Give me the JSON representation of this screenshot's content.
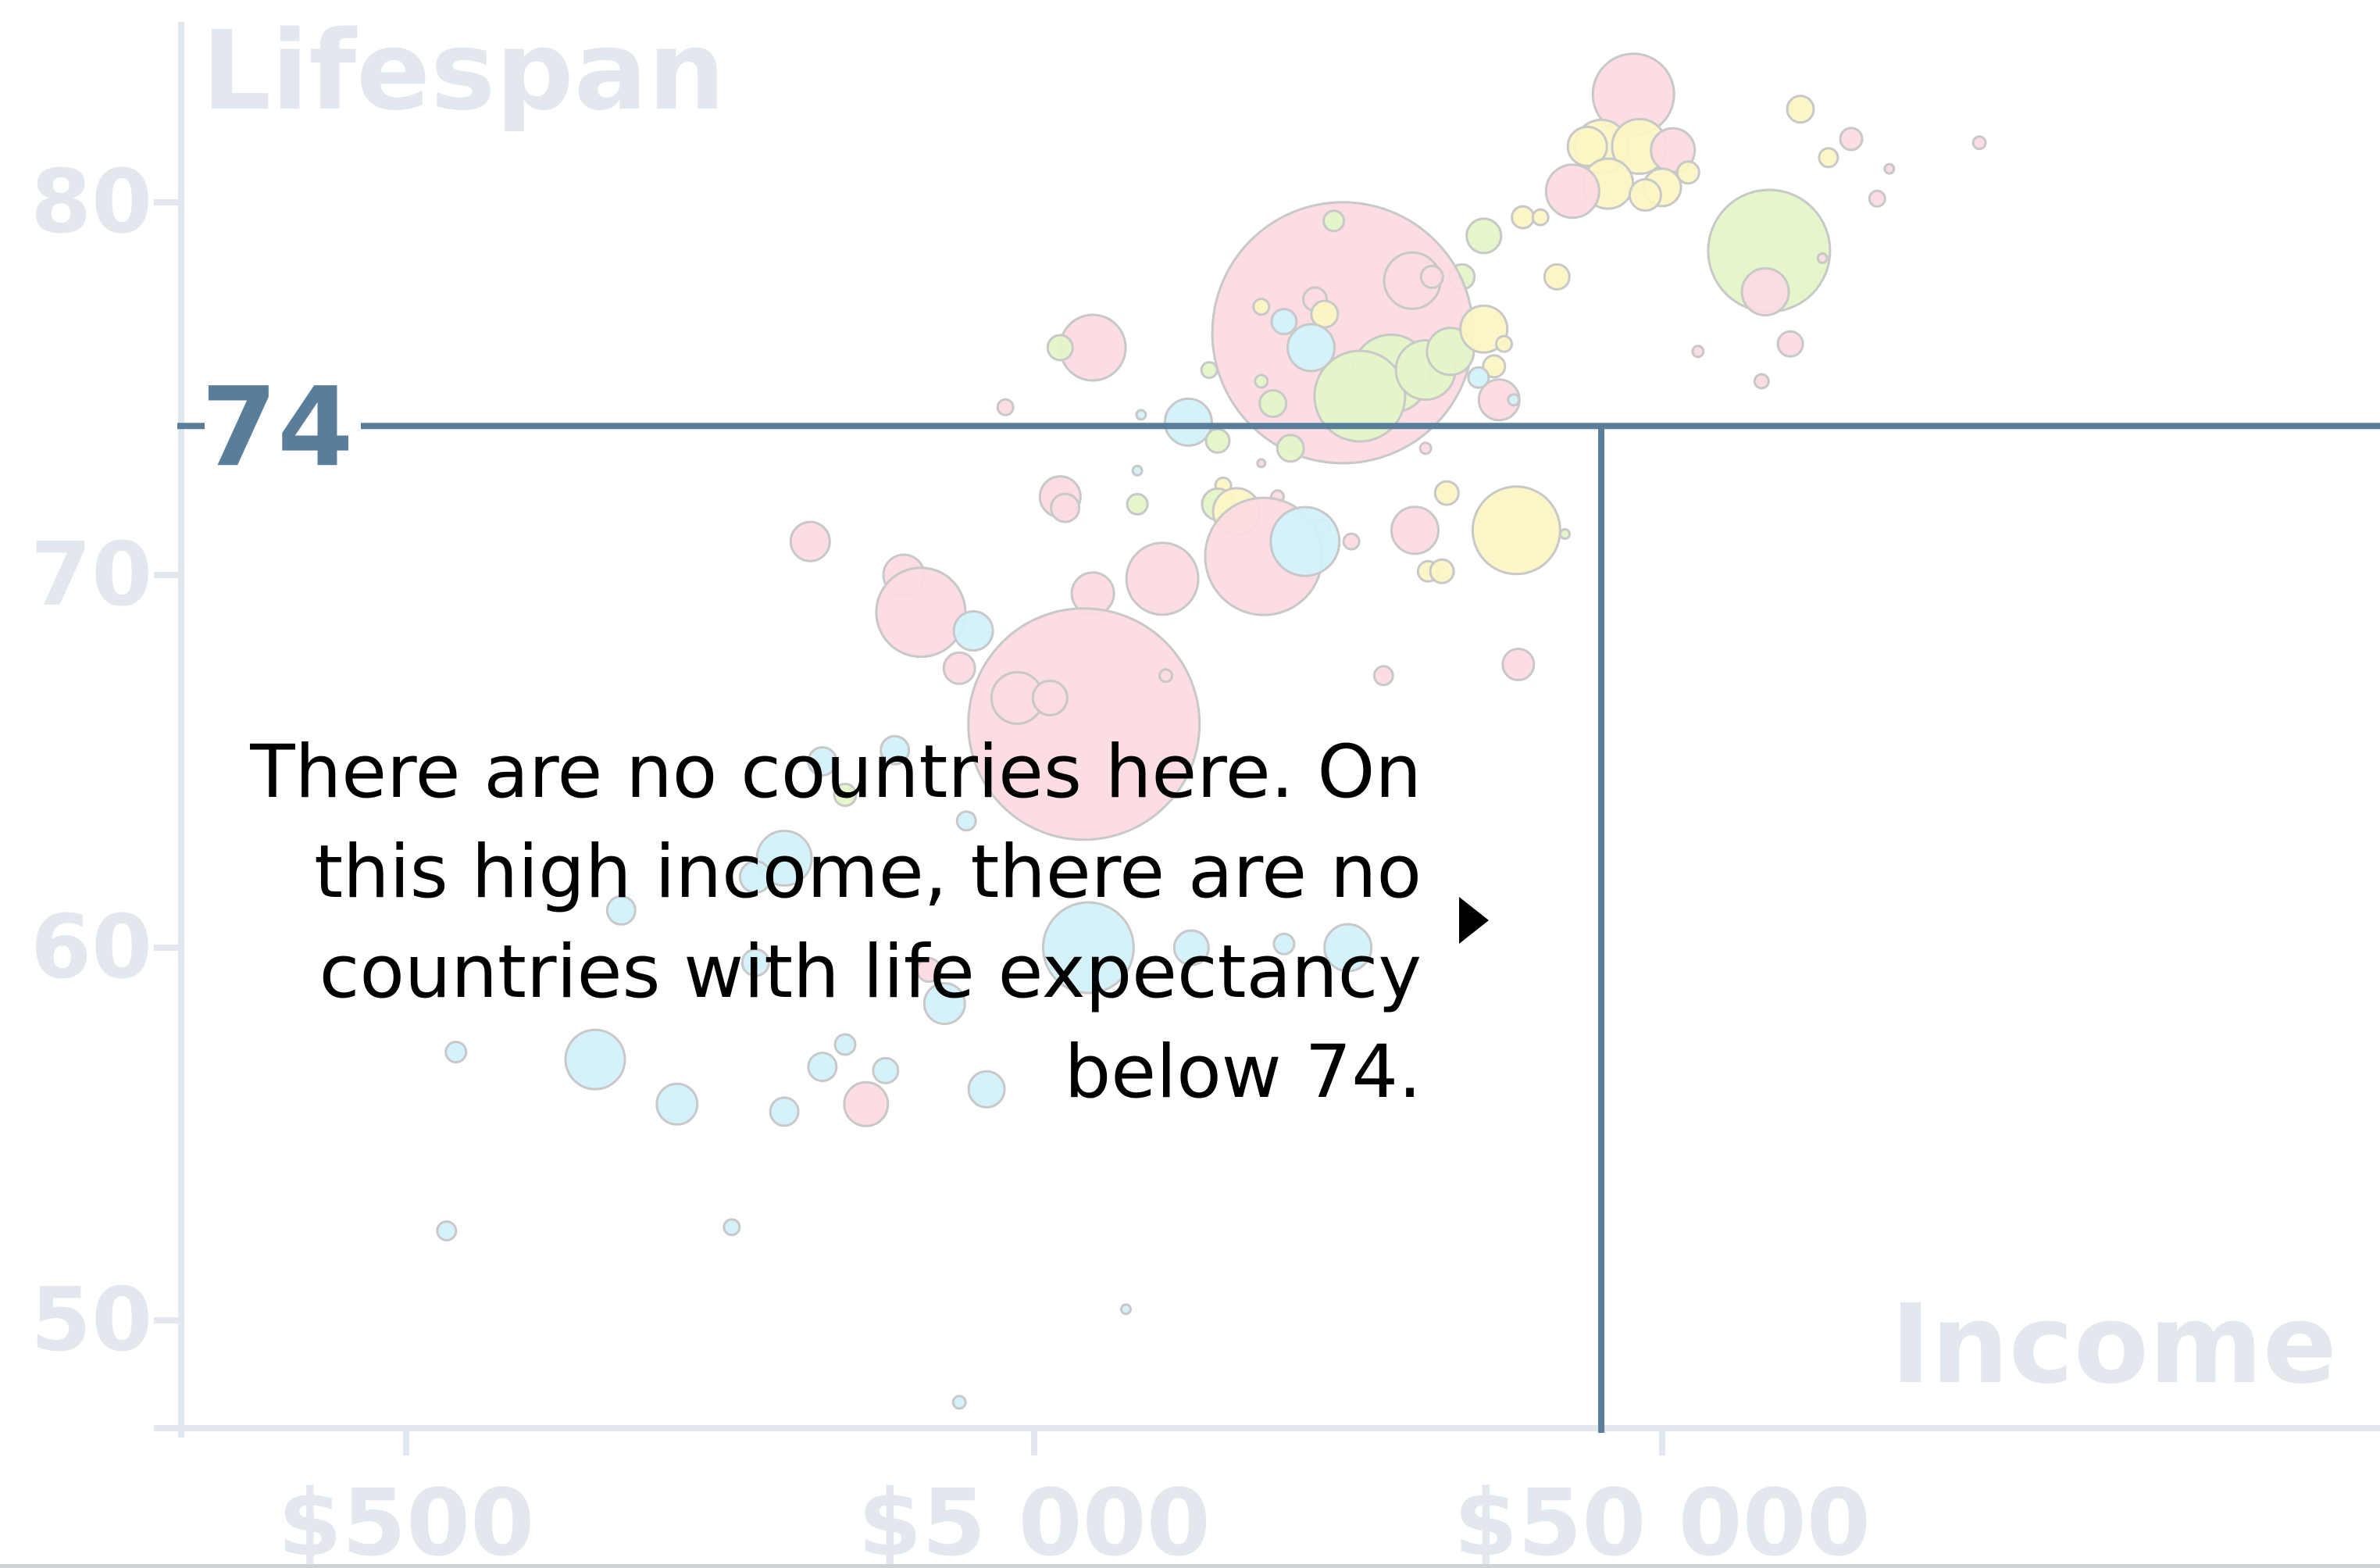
{
  "chart_data": {
    "type": "scatter",
    "subtype": "bubble",
    "ylabel": "Lifespan",
    "xlabel": "Income",
    "x_scale": "log",
    "xlim": [
      200,
      200000
    ],
    "ylim": [
      47,
      84
    ],
    "y_ticks": [
      50,
      60,
      70,
      80
    ],
    "x_ticks": [
      500,
      5000,
      50000
    ],
    "x_tick_labels": [
      "$500",
      "$5 000",
      "$50 000"
    ],
    "y_tick_labels": [
      "80",
      "70",
      "60",
      "50"
    ],
    "threshold": {
      "y": 74,
      "y_label": "74",
      "x": 40000
    },
    "annotation": {
      "lines": [
        "There are no countries here. On",
        "this high income, there are no",
        "countries with life expectancy",
        "below 74."
      ]
    },
    "series_colors": {
      "pink": "#fbdbe1",
      "yellow": "#fbf5c4",
      "green": "#e4f5c8",
      "blue": "#d3f1fb"
    },
    "colors": {
      "axis": "#e3e8ee",
      "highlight_line": "#5a7d99",
      "bubble_stroke": "#c8c8c8"
    },
    "points": [
      {
        "x": 45000,
        "y": 82.9,
        "r": 52,
        "c": "pink"
      },
      {
        "x": 40000,
        "y": 81.5,
        "r": 34,
        "c": "yellow"
      },
      {
        "x": 46000,
        "y": 81.5,
        "r": 35,
        "c": "yellow"
      },
      {
        "x": 52000,
        "y": 81.4,
        "r": 28,
        "c": "pink"
      },
      {
        "x": 38000,
        "y": 81.5,
        "r": 25,
        "c": "yellow"
      },
      {
        "x": 41000,
        "y": 80.5,
        "r": 32,
        "c": "yellow"
      },
      {
        "x": 36000,
        "y": 80.3,
        "r": 34,
        "c": "pink"
      },
      {
        "x": 50000,
        "y": 80.4,
        "r": 24,
        "c": "yellow"
      },
      {
        "x": 47000,
        "y": 80.2,
        "r": 20,
        "c": "yellow"
      },
      {
        "x": 55000,
        "y": 80.8,
        "r": 14,
        "c": "yellow"
      },
      {
        "x": 83000,
        "y": 82.5,
        "r": 17,
        "c": "yellow"
      },
      {
        "x": 100000,
        "y": 81.7,
        "r": 14,
        "c": "pink"
      },
      {
        "x": 92000,
        "y": 81.2,
        "r": 12,
        "c": "yellow"
      },
      {
        "x": 160000,
        "y": 81.6,
        "r": 8,
        "c": "pink"
      },
      {
        "x": 110000,
        "y": 80.1,
        "r": 10,
        "c": "pink"
      },
      {
        "x": 115000,
        "y": 80.9,
        "r": 6,
        "c": "pink"
      },
      {
        "x": 74000,
        "y": 78.7,
        "r": 78,
        "c": "green"
      },
      {
        "x": 73000,
        "y": 77.6,
        "r": 30,
        "c": "pink"
      },
      {
        "x": 90000,
        "y": 78.5,
        "r": 6,
        "c": "pink"
      },
      {
        "x": 80000,
        "y": 76.2,
        "r": 16,
        "c": "pink"
      },
      {
        "x": 72000,
        "y": 75.2,
        "r": 9,
        "c": "pink"
      },
      {
        "x": 30000,
        "y": 79.6,
        "r": 14,
        "c": "yellow"
      },
      {
        "x": 26000,
        "y": 79.1,
        "r": 22,
        "c": "green"
      },
      {
        "x": 32000,
        "y": 79.6,
        "r": 10,
        "c": "yellow"
      },
      {
        "x": 34000,
        "y": 78,
        "r": 16,
        "c": "yellow"
      },
      {
        "x": 24000,
        "y": 78,
        "r": 16,
        "c": "green"
      },
      {
        "x": 15500,
        "y": 76.5,
        "r": 167,
        "c": "pink"
      },
      {
        "x": 20000,
        "y": 77.9,
        "r": 36,
        "c": "pink"
      },
      {
        "x": 21500,
        "y": 78,
        "r": 14,
        "c": "pink"
      },
      {
        "x": 15000,
        "y": 79.5,
        "r": 13,
        "c": "green"
      },
      {
        "x": 14000,
        "y": 77.4,
        "r": 15,
        "c": "pink"
      },
      {
        "x": 14500,
        "y": 77,
        "r": 17,
        "c": "yellow"
      },
      {
        "x": 11500,
        "y": 77.2,
        "r": 10,
        "c": "yellow"
      },
      {
        "x": 12500,
        "y": 76.8,
        "r": 16,
        "c": "blue"
      },
      {
        "x": 13800,
        "y": 76.1,
        "r": 30,
        "c": "blue"
      },
      {
        "x": 18500,
        "y": 75.4,
        "r": 50,
        "c": "green"
      },
      {
        "x": 16500,
        "y": 74.8,
        "r": 58,
        "c": "green"
      },
      {
        "x": 21000,
        "y": 75.5,
        "r": 38,
        "c": "green"
      },
      {
        "x": 23000,
        "y": 76,
        "r": 30,
        "c": "green"
      },
      {
        "x": 26000,
        "y": 76.6,
        "r": 30,
        "c": "yellow"
      },
      {
        "x": 27000,
        "y": 75.6,
        "r": 14,
        "c": "yellow"
      },
      {
        "x": 28000,
        "y": 76.2,
        "r": 10,
        "c": "yellow"
      },
      {
        "x": 27500,
        "y": 74.7,
        "r": 26,
        "c": "pink"
      },
      {
        "x": 25500,
        "y": 75.3,
        "r": 13,
        "c": "blue"
      },
      {
        "x": 12000,
        "y": 74.6,
        "r": 17,
        "c": "green"
      },
      {
        "x": 12800,
        "y": 73.4,
        "r": 17,
        "c": "green"
      },
      {
        "x": 9500,
        "y": 75.5,
        "r": 10,
        "c": "green"
      },
      {
        "x": 11500,
        "y": 75.2,
        "r": 8,
        "c": "green"
      },
      {
        "x": 6200,
        "y": 76.1,
        "r": 42,
        "c": "pink"
      },
      {
        "x": 5500,
        "y": 76.1,
        "r": 16,
        "c": "green"
      },
      {
        "x": 4500,
        "y": 74.5,
        "r": 10,
        "c": "pink"
      },
      {
        "x": 8800,
        "y": 74.1,
        "r": 30,
        "c": "blue"
      },
      {
        "x": 9800,
        "y": 73.6,
        "r": 15,
        "c": "green"
      },
      {
        "x": 7300,
        "y": 72.8,
        "r": 6,
        "c": "blue"
      },
      {
        "x": 10000,
        "y": 72.4,
        "r": 10,
        "c": "yellow"
      },
      {
        "x": 9800,
        "y": 71.9,
        "r": 20,
        "c": "green"
      },
      {
        "x": 12200,
        "y": 72.1,
        "r": 8,
        "c": "pink"
      },
      {
        "x": 14400,
        "y": 71.3,
        "r": 9,
        "c": "pink"
      },
      {
        "x": 16000,
        "y": 70.9,
        "r": 10,
        "c": "pink"
      },
      {
        "x": 20200,
        "y": 71.2,
        "r": 30,
        "c": "pink"
      },
      {
        "x": 22700,
        "y": 72.2,
        "r": 15,
        "c": "yellow"
      },
      {
        "x": 29300,
        "y": 71.2,
        "r": 56,
        "c": "yellow"
      },
      {
        "x": 35000,
        "y": 71.1,
        "r": 6,
        "c": "green"
      },
      {
        "x": 5500,
        "y": 72.1,
        "r": 26,
        "c": "pink"
      },
      {
        "x": 5600,
        "y": 71.8,
        "r": 18,
        "c": "pink"
      },
      {
        "x": 7300,
        "y": 71.9,
        "r": 13,
        "c": "green"
      },
      {
        "x": 10500,
        "y": 71.7,
        "r": 30,
        "c": "yellow"
      },
      {
        "x": 11600,
        "y": 70.5,
        "r": 75,
        "c": "pink"
      },
      {
        "x": 13500,
        "y": 70.9,
        "r": 44,
        "c": "blue"
      },
      {
        "x": 21200,
        "y": 70.1,
        "r": 13,
        "c": "yellow"
      },
      {
        "x": 22300,
        "y": 70.1,
        "r": 15,
        "c": "yellow"
      },
      {
        "x": 8000,
        "y": 69.9,
        "r": 46,
        "c": "pink"
      },
      {
        "x": 6200,
        "y": 69.5,
        "r": 27,
        "c": "pink"
      },
      {
        "x": 2200,
        "y": 70.9,
        "r": 25,
        "c": "pink"
      },
      {
        "x": 3100,
        "y": 70,
        "r": 26,
        "c": "pink"
      },
      {
        "x": 3300,
        "y": 69,
        "r": 57,
        "c": "pink"
      },
      {
        "x": 4000,
        "y": 68.5,
        "r": 25,
        "c": "blue"
      },
      {
        "x": 3800,
        "y": 67.5,
        "r": 20,
        "c": "pink"
      },
      {
        "x": 6000,
        "y": 66,
        "r": 148,
        "c": "pink"
      },
      {
        "x": 4700,
        "y": 66.7,
        "r": 33,
        "c": "pink"
      },
      {
        "x": 5300,
        "y": 66.7,
        "r": 22,
        "c": "pink"
      },
      {
        "x": 8100,
        "y": 67.3,
        "r": 8,
        "c": "pink"
      },
      {
        "x": 18000,
        "y": 67.3,
        "r": 12,
        "c": "pink"
      },
      {
        "x": 29500,
        "y": 67.6,
        "r": 20,
        "c": "pink"
      },
      {
        "x": 2300,
        "y": 65,
        "r": 18,
        "c": "blue"
      },
      {
        "x": 3000,
        "y": 65.3,
        "r": 18,
        "c": "blue"
      },
      {
        "x": 2500,
        "y": 64.1,
        "r": 14,
        "c": "green"
      },
      {
        "x": 3900,
        "y": 63.4,
        "r": 12,
        "c": "blue"
      },
      {
        "x": 2000,
        "y": 62.4,
        "r": 35,
        "c": "blue"
      },
      {
        "x": 1800,
        "y": 61.9,
        "r": 20,
        "c": "blue"
      },
      {
        "x": 1100,
        "y": 61,
        "r": 18,
        "c": "blue"
      },
      {
        "x": 6100,
        "y": 60,
        "r": 58,
        "c": "blue"
      },
      {
        "x": 8900,
        "y": 60,
        "r": 22,
        "c": "blue"
      },
      {
        "x": 12500,
        "y": 60.1,
        "r": 13,
        "c": "blue"
      },
      {
        "x": 15800,
        "y": 60,
        "r": 30,
        "c": "blue"
      },
      {
        "x": 3600,
        "y": 58.5,
        "r": 26,
        "c": "blue"
      },
      {
        "x": 1800,
        "y": 59.6,
        "r": 17,
        "c": "blue"
      },
      {
        "x": 3400,
        "y": 59.4,
        "r": 15,
        "c": "pink"
      },
      {
        "x": 600,
        "y": 57.2,
        "r": 13,
        "c": "blue"
      },
      {
        "x": 1000,
        "y": 57,
        "r": 38,
        "c": "blue"
      },
      {
        "x": 2500,
        "y": 57.4,
        "r": 13,
        "c": "blue"
      },
      {
        "x": 2300,
        "y": 56.8,
        "r": 18,
        "c": "blue"
      },
      {
        "x": 2900,
        "y": 56.7,
        "r": 16,
        "c": "blue"
      },
      {
        "x": 4200,
        "y": 56.2,
        "r": 23,
        "c": "blue"
      },
      {
        "x": 1350,
        "y": 55.8,
        "r": 26,
        "c": "blue"
      },
      {
        "x": 2000,
        "y": 55.6,
        "r": 18,
        "c": "blue"
      },
      {
        "x": 2700,
        "y": 55.8,
        "r": 28,
        "c": "pink"
      },
      {
        "x": 580,
        "y": 52.4,
        "r": 12,
        "c": "blue"
      },
      {
        "x": 1650,
        "y": 52.5,
        "r": 10,
        "c": "blue"
      },
      {
        "x": 3800,
        "y": 47.8,
        "r": 8,
        "c": "blue"
      },
      {
        "x": 7000,
        "y": 50.3,
        "r": 6,
        "c": "blue"
      },
      {
        "x": 21000,
        "y": 73.4,
        "r": 7,
        "c": "pink"
      },
      {
        "x": 29000,
        "y": 74.7,
        "r": 7,
        "c": "blue"
      },
      {
        "x": 57000,
        "y": 76,
        "r": 7,
        "c": "pink"
      },
      {
        "x": 7400,
        "y": 74.3,
        "r": 6,
        "c": "blue"
      },
      {
        "x": 11500,
        "y": 73,
        "r": 5,
        "c": "pink"
      }
    ]
  }
}
